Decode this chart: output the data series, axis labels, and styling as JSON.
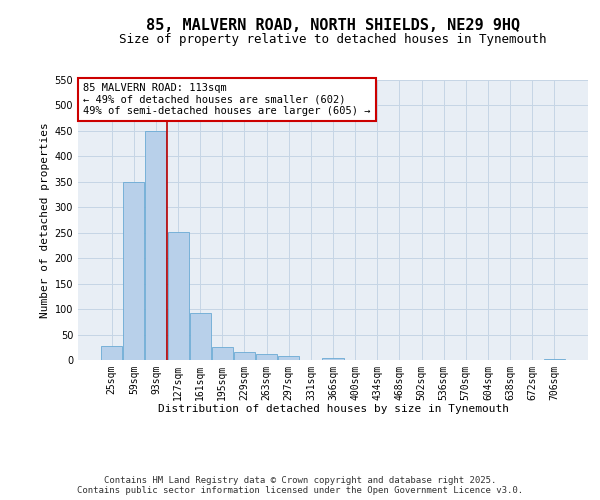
{
  "title": "85, MALVERN ROAD, NORTH SHIELDS, NE29 9HQ",
  "subtitle": "Size of property relative to detached houses in Tynemouth",
  "xlabel": "Distribution of detached houses by size in Tynemouth",
  "ylabel": "Number of detached properties",
  "bar_labels": [
    "25sqm",
    "59sqm",
    "93sqm",
    "127sqm",
    "161sqm",
    "195sqm",
    "229sqm",
    "263sqm",
    "297sqm",
    "331sqm",
    "366sqm",
    "400sqm",
    "434sqm",
    "468sqm",
    "502sqm",
    "536sqm",
    "570sqm",
    "604sqm",
    "638sqm",
    "672sqm",
    "706sqm"
  ],
  "bar_values": [
    28,
    350,
    450,
    252,
    93,
    25,
    15,
    11,
    7,
    0,
    4,
    0,
    0,
    0,
    0,
    0,
    0,
    0,
    0,
    0,
    2
  ],
  "bar_color": "#b8d0ea",
  "bar_edge_color": "#6aaad4",
  "vline_color": "#bb0000",
  "ylim_max": 550,
  "yticks": [
    0,
    50,
    100,
    150,
    200,
    250,
    300,
    350,
    400,
    450,
    500,
    550
  ],
  "annotation_title": "85 MALVERN ROAD: 113sqm",
  "annotation_line1": "← 49% of detached houses are smaller (602)",
  "annotation_line2": "49% of semi-detached houses are larger (605) →",
  "annotation_box_color": "#ffffff",
  "annotation_border_color": "#cc0000",
  "footer_line1": "Contains HM Land Registry data © Crown copyright and database right 2025.",
  "footer_line2": "Contains public sector information licensed under the Open Government Licence v3.0.",
  "bg_color": "#ffffff",
  "plot_bg_color": "#e8eef5",
  "grid_color": "#c5d5e5",
  "title_fontsize": 11,
  "subtitle_fontsize": 9,
  "axis_label_fontsize": 8,
  "tick_fontsize": 7,
  "annotation_fontsize": 7.5,
  "footer_fontsize": 6.5
}
